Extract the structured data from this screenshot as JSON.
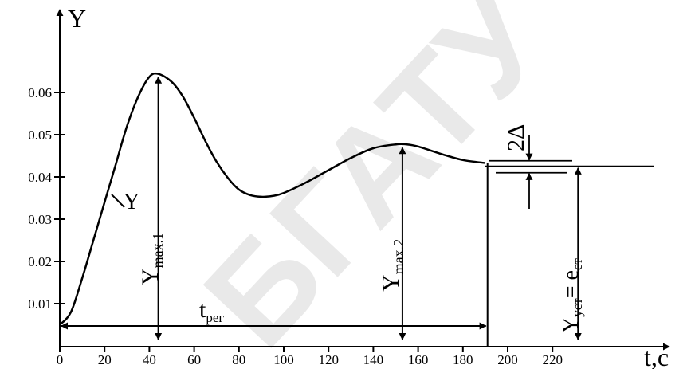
{
  "chart_data": {
    "type": "line",
    "title": "",
    "xlabel": "t,c",
    "ylabel": "Y",
    "xlim": [
      0,
      240
    ],
    "ylim": [
      0.005,
      0.071
    ],
    "x_ticks": [
      "0",
      "20",
      "40",
      "60",
      "80",
      "100",
      "120",
      "140",
      "160",
      "180",
      "200",
      "220"
    ],
    "y_ticks": [
      "0.01",
      "0.02",
      "0.03",
      "0.04",
      "0.05",
      "0.06"
    ],
    "series": [
      {
        "name": "Y",
        "x": [
          0,
          5,
          10,
          15,
          20,
          25,
          30,
          35,
          40,
          44,
          50,
          55,
          60,
          65,
          70,
          75,
          80,
          85,
          90,
          95,
          100,
          110,
          120,
          130,
          140,
          150,
          155,
          160,
          170,
          180,
          190
        ],
        "y": [
          0.005,
          0.008,
          0.016,
          0.025,
          0.034,
          0.043,
          0.052,
          0.059,
          0.0637,
          0.0644,
          0.0625,
          0.059,
          0.054,
          0.0485,
          0.0436,
          0.0398,
          0.037,
          0.0357,
          0.0353,
          0.0355,
          0.0362,
          0.0387,
          0.0416,
          0.0445,
          0.0468,
          0.0477,
          0.0477,
          0.0472,
          0.0455,
          0.044,
          0.0433
        ]
      }
    ],
    "steady_value": 0.0425,
    "annotations": {
      "curve_label": "Y",
      "ymax1": {
        "x": 44,
        "y": 0.0644
      },
      "ymax2": {
        "x": 153,
        "y": 0.0477
      },
      "t_reg": {
        "x_start": 0,
        "x_end": 191
      },
      "steady_marker_x": 230,
      "band_width_label": "2Δ"
    },
    "grid": false,
    "legend": "none"
  },
  "labels": {
    "ymax1_main": "Y",
    "ymax1_sub": "max.1",
    "ymax2_main": "Y",
    "ymax2_sub": "max.2",
    "treg_main": "t",
    "treg_sub": "рег",
    "yust_main": "Y",
    "yust_sub": "уст",
    "yust_eq": "= e",
    "yust_eq_sub": "ст",
    "delta": "2Δ",
    "watermark": "БГАТУ"
  },
  "colors": {
    "ink": "#000000",
    "watermark": "#e9e9e9",
    "background": "#ffffff"
  }
}
